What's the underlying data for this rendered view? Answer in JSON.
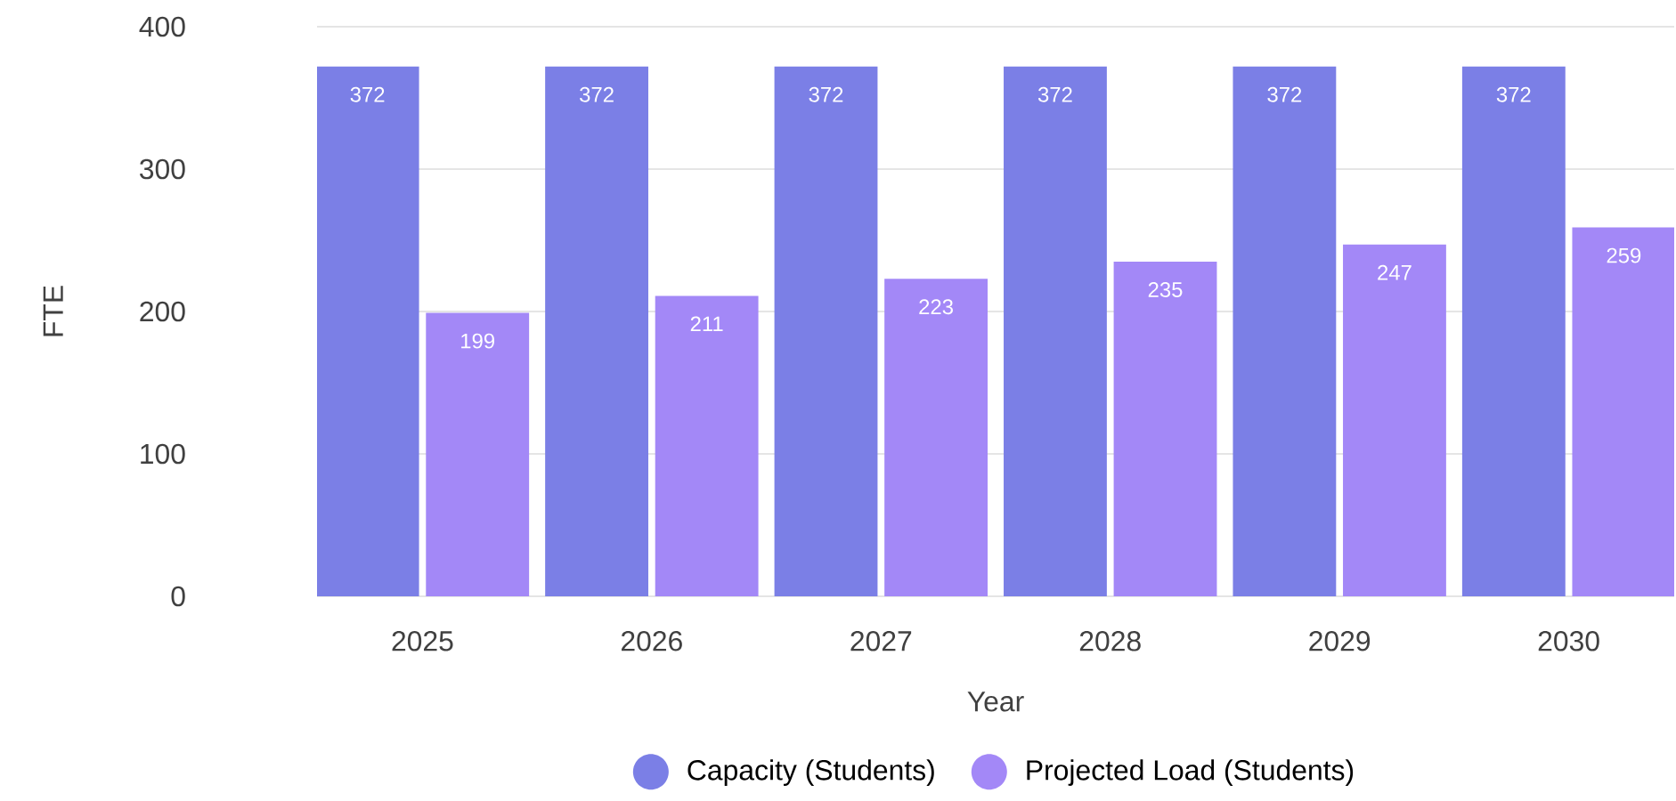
{
  "chart_data": {
    "type": "bar",
    "xlabel": "Year",
    "ylabel": "FTE",
    "categories": [
      "2025",
      "2026",
      "2027",
      "2028",
      "2029",
      "2030"
    ],
    "series": [
      {
        "name": "Capacity (Students)",
        "color": "#7b7fe6",
        "values": [
          372,
          372,
          372,
          372,
          372,
          372
        ]
      },
      {
        "name": "Projected Load  (Students)",
        "color": "#a388f7",
        "values": [
          199,
          211,
          223,
          235,
          247,
          259
        ]
      }
    ],
    "ylim": [
      0,
      400
    ],
    "yticks": [
      0,
      100,
      200,
      300,
      400
    ],
    "grid": "y",
    "legend": "bottom",
    "data_labels": true
  }
}
